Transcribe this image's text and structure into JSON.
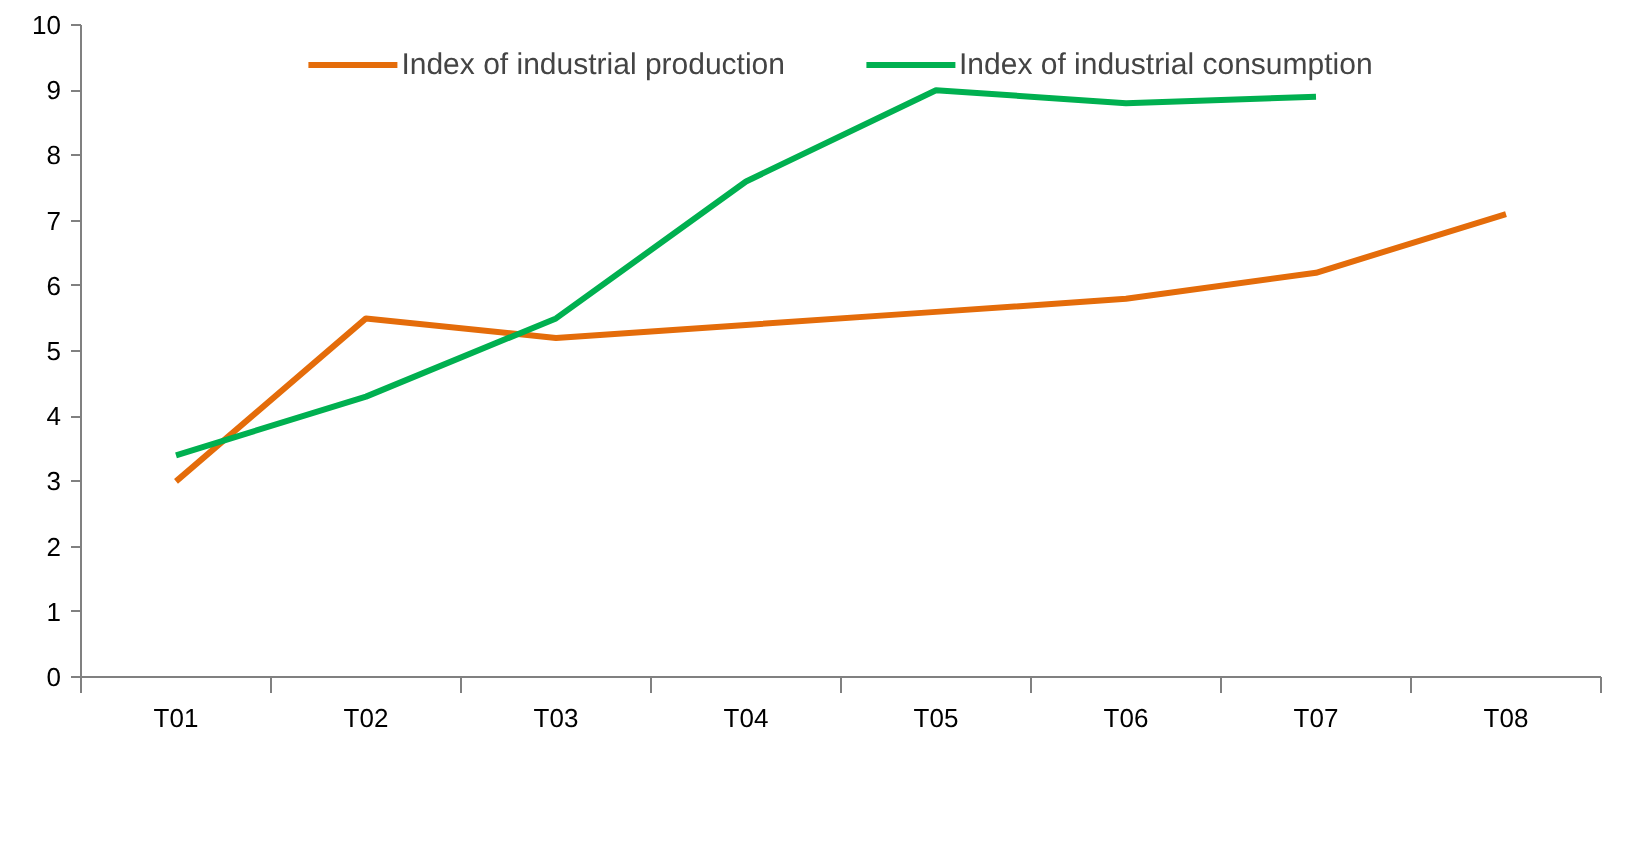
{
  "chart_data": {
    "type": "line",
    "categories": [
      "T01",
      "T02",
      "T03",
      "T04",
      "T05",
      "T06",
      "T07",
      "T08"
    ],
    "series": [
      {
        "name": "Index of industrial production",
        "color": "#e46c0a",
        "values": [
          3.0,
          5.5,
          5.2,
          5.4,
          5.6,
          5.8,
          6.2,
          7.1
        ]
      },
      {
        "name": "Index of industrial consumption",
        "color": "#00b050",
        "values": [
          3.4,
          4.3,
          5.5,
          7.6,
          9.0,
          8.8,
          8.9,
          null
        ]
      }
    ],
    "ylim": [
      0,
      10
    ],
    "yticks": [
      0,
      1,
      2,
      3,
      4,
      5,
      6,
      7,
      8,
      9,
      10
    ],
    "grid": false,
    "legend": "top",
    "marker": "none",
    "line_style": "solid"
  }
}
